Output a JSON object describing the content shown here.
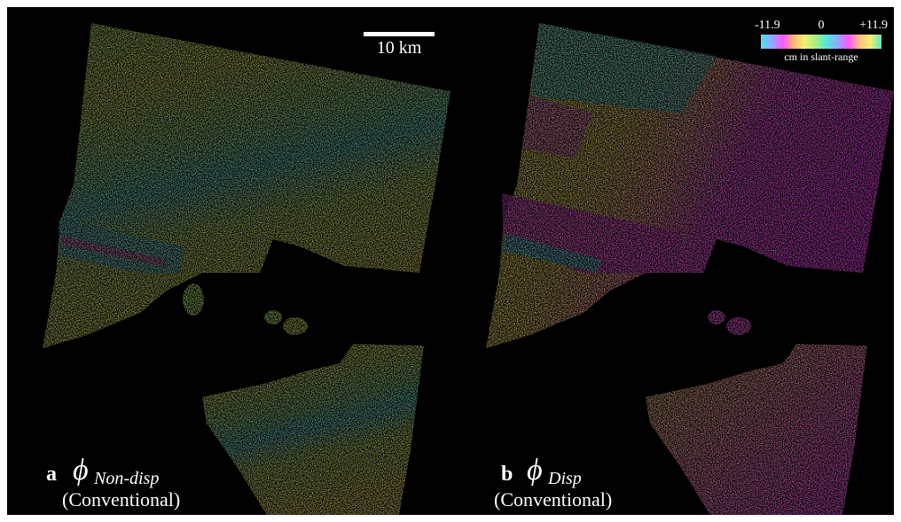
{
  "scalebar": {
    "label": "10 km"
  },
  "colorbar": {
    "min_label": "-11.9",
    "mid_label": "0",
    "max_label": "+11.9",
    "caption": "cm in slant-range",
    "colors": [
      "#4fe0e8",
      "#8fa8ff",
      "#ff55ff",
      "#ffb870",
      "#f0f070",
      "#a8f080"
    ]
  },
  "panels": [
    {
      "letter": "a",
      "symbol": "ϕ",
      "subscript": "Non-disp",
      "method": "(Conventional)"
    },
    {
      "letter": "b",
      "symbol": "ϕ",
      "subscript": "Disp",
      "method": "(Conventional)"
    }
  ]
}
